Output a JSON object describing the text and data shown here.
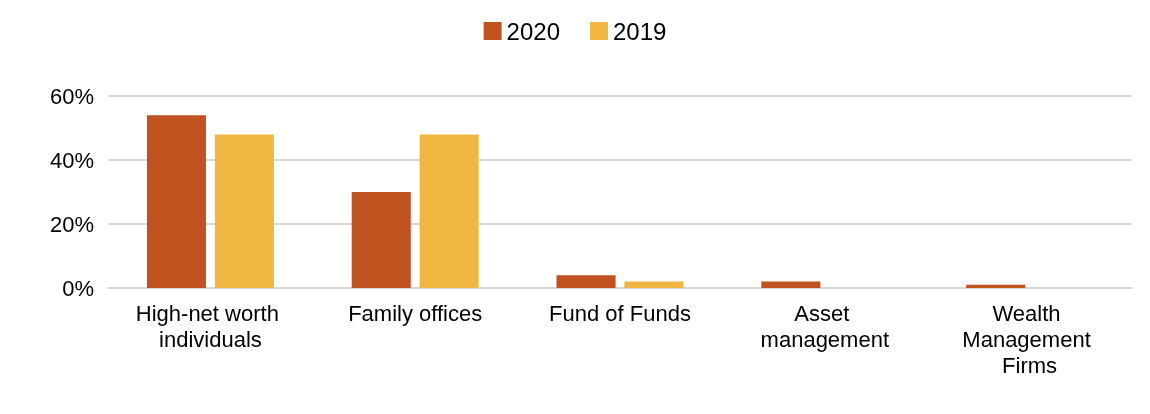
{
  "chart_data": {
    "type": "bar",
    "categories": [
      "High-net worth individuals",
      "Family offices",
      "Fund of Funds",
      "Asset management",
      "Wealth Management Firms"
    ],
    "series": [
      {
        "name": "2020",
        "color": "#c0531f",
        "values": [
          54,
          30,
          4,
          2,
          1
        ]
      },
      {
        "name": "2019",
        "color": "#f0b642",
        "values": [
          48,
          48,
          2,
          0,
          0
        ]
      }
    ],
    "ylim": [
      0,
      60
    ],
    "yticks": [
      {
        "value": 0,
        "label": "0%"
      },
      {
        "value": 20,
        "label": "20%"
      },
      {
        "value": 40,
        "label": "40%"
      },
      {
        "value": 60,
        "label": "60%"
      }
    ],
    "grid": "y",
    "legend": "top"
  }
}
